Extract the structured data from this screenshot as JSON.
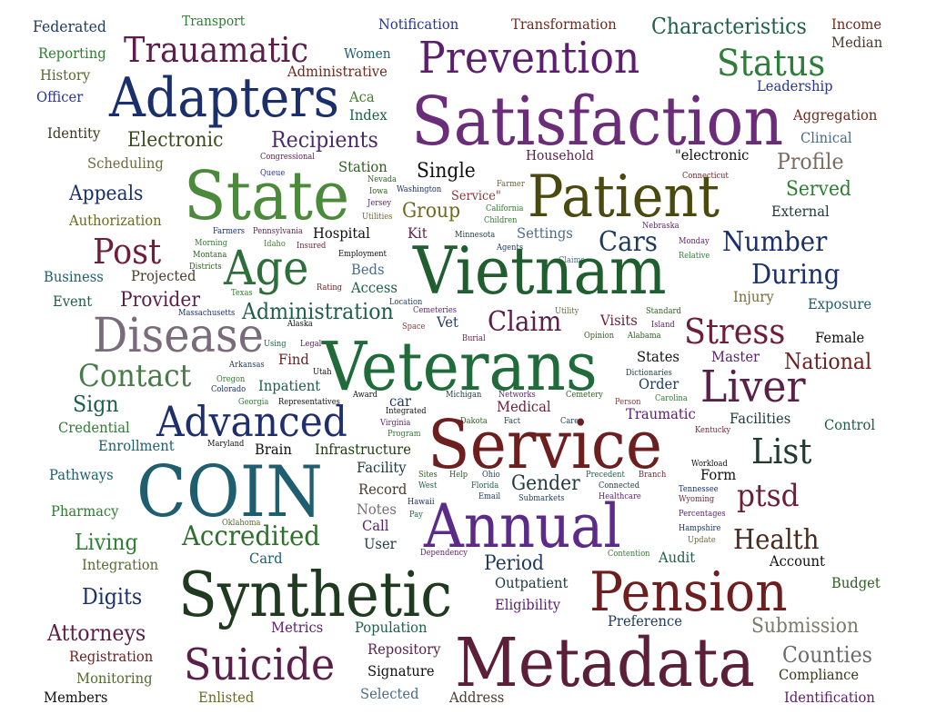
{
  "words": [
    {
      "text": "Federated",
      "color": "#1f3a5f"
    },
    {
      "text": "Transport",
      "color": "#2e7d32"
    },
    {
      "text": "Notification",
      "color": "#283593"
    },
    {
      "text": "Transformation",
      "color": "#6d2b1f"
    },
    {
      "text": "Characteristics",
      "color": "#1f5e4a"
    },
    {
      "text": "Income",
      "color": "#6d2b1f"
    },
    {
      "text": "Median",
      "color": "#4a3b2e"
    },
    {
      "text": "Reporting",
      "color": "#2e7d32"
    },
    {
      "text": "Trauamatic",
      "color": "#5c1f4a"
    },
    {
      "text": "Women",
      "color": "#1f5e6e"
    },
    {
      "text": "Prevention",
      "color": "#5c1f6e"
    },
    {
      "text": "Status",
      "color": "#2e7d3a"
    },
    {
      "text": "History",
      "color": "#556b2f"
    },
    {
      "text": "Administrative",
      "color": "#6d2b1f"
    },
    {
      "text": "Officer",
      "color": "#283593"
    },
    {
      "text": "Adapters",
      "color": "#1a2f6b"
    },
    {
      "text": "Aca",
      "color": "#4a7a2e"
    },
    {
      "text": "Leadership",
      "color": "#283593"
    },
    {
      "text": "Index",
      "color": "#1f5e4a"
    },
    {
      "text": "Satisfaction",
      "color": "#6b2d7a"
    },
    {
      "text": "Aggregation",
      "color": "#6d2b1f"
    },
    {
      "text": "Identity",
      "color": "#3a3a1f"
    },
    {
      "text": "Clinical",
      "color": "#4a6b8a"
    },
    {
      "text": "Electronic",
      "color": "#3a4a1f"
    },
    {
      "text": "Recipients",
      "color": "#4a2b6b"
    },
    {
      "text": "Household",
      "color": "#5c1f4a"
    },
    {
      "text": "\"electronic",
      "color": "#111111"
    },
    {
      "text": "Scheduling",
      "color": "#6b6b3a"
    },
    {
      "text": "Profile",
      "color": "#7a6b5e"
    },
    {
      "text": "Congressional",
      "color": "#5c1f4a"
    },
    {
      "text": "Station",
      "color": "#2e5e1f"
    },
    {
      "text": "Single",
      "color": "#111111"
    },
    {
      "text": "Farmer",
      "color": "#6b5e3a"
    },
    {
      "text": "Connecticut",
      "color": "#6d1f1f"
    },
    {
      "text": "Queue",
      "color": "#283593"
    },
    {
      "text": "State",
      "color": "#4a8a3a"
    },
    {
      "text": "Patient",
      "color": "#4a4a0f"
    },
    {
      "text": "Served",
      "color": "#2e7d32"
    },
    {
      "text": "Nevada",
      "color": "#2e5e1f"
    },
    {
      "text": "Iowa",
      "color": "#2e5e1f"
    },
    {
      "text": "Washington",
      "color": "#1a2f6b"
    },
    {
      "text": "Service\"",
      "color": "#8a3a3a"
    },
    {
      "text": "Appeals",
      "color": "#1a2f6b"
    },
    {
      "text": "Jersey",
      "color": "#5c1f6e"
    },
    {
      "text": "Group",
      "color": "#6b6b1f"
    },
    {
      "text": "California",
      "color": "#2e7d32"
    },
    {
      "text": "External",
      "color": "#1f3a3a"
    },
    {
      "text": "Authorization",
      "color": "#6b6b1f"
    },
    {
      "text": "Utilities",
      "color": "#6b6b3a"
    },
    {
      "text": "Children",
      "color": "#2e7d32"
    },
    {
      "text": "Nebraska",
      "color": "#5c1f6e"
    },
    {
      "text": "Farmers",
      "color": "#1a2f6b"
    },
    {
      "text": "Pennsylvania",
      "color": "#5c1f4a"
    },
    {
      "text": "Hospital",
      "color": "#111111"
    },
    {
      "text": "Kit",
      "color": "#5c1f4a"
    },
    {
      "text": "Settings",
      "color": "#4a6b8a"
    },
    {
      "text": "Cars",
      "color": "#1f3a5f"
    },
    {
      "text": "Number",
      "color": "#1a2f6b"
    },
    {
      "text": "Post",
      "color": "#6d1f3a"
    },
    {
      "text": "Morning",
      "color": "#2e7d32"
    },
    {
      "text": "Idaho",
      "color": "#4a7a2e"
    },
    {
      "text": "Minnesota",
      "color": "#1f3a3a"
    },
    {
      "text": "Monday",
      "color": "#5c1f6e"
    },
    {
      "text": "Insured",
      "color": "#6d1f3a"
    },
    {
      "text": "Agents",
      "color": "#1f3a5f"
    },
    {
      "text": "Montana",
      "color": "#2e5e1f"
    },
    {
      "text": "Employment",
      "color": "#111111"
    },
    {
      "text": "Relative",
      "color": "#2e7d32"
    },
    {
      "text": "Districts",
      "color": "#2e5e1f"
    },
    {
      "text": "Claims",
      "color": "#4a6b8a"
    },
    {
      "text": "Age",
      "color": "#2e6e3a"
    },
    {
      "text": "Vietnam",
      "color": "#1f5e2e"
    },
    {
      "text": "During",
      "color": "#1a2f6b"
    },
    {
      "text": "Business",
      "color": "#1f5e6e"
    },
    {
      "text": "Projected",
      "color": "#4a3b2e"
    },
    {
      "text": "Beds",
      "color": "#4a6b8a"
    },
    {
      "text": "Rating",
      "color": "#6d1f1f"
    },
    {
      "text": "Access",
      "color": "#1f5e4a"
    },
    {
      "text": "Event",
      "color": "#1f5e4a"
    },
    {
      "text": "Provider",
      "color": "#5c1f4a"
    },
    {
      "text": "Texas",
      "color": "#2e7d32"
    },
    {
      "text": "Location",
      "color": "#1f3a5f"
    },
    {
      "text": "Injury",
      "color": "#7a6b3a"
    },
    {
      "text": "Exposure",
      "color": "#1f5e6e"
    },
    {
      "text": "Massachusetts",
      "color": "#1a2f6b"
    },
    {
      "text": "Administration",
      "color": "#1f5e4a"
    },
    {
      "text": "Cemeteries",
      "color": "#5c1f6e"
    },
    {
      "text": "Utility",
      "color": "#6b6b3a"
    },
    {
      "text": "Standard",
      "color": "#2e5e1f"
    },
    {
      "text": "Claim",
      "color": "#5c1f4a"
    },
    {
      "text": "Visits",
      "color": "#6d1f3a"
    },
    {
      "text": "Island",
      "color": "#5c1f6e"
    },
    {
      "text": "Stress",
      "color": "#6d1f3a"
    },
    {
      "text": "Disease",
      "color": "#7a6b7a"
    },
    {
      "text": "Alaska",
      "color": "#111111"
    },
    {
      "text": "Space",
      "color": "#8a3a3a"
    },
    {
      "text": "Vet",
      "color": "#1f3a5f"
    },
    {
      "text": "Opinion",
      "color": "#2e5e1f"
    },
    {
      "text": "Alabama",
      "color": "#2e5e1f"
    },
    {
      "text": "Female",
      "color": "#111111"
    },
    {
      "text": "Using",
      "color": "#1f5e4a"
    },
    {
      "text": "Legal",
      "color": "#5c1f4a"
    },
    {
      "text": "Burial",
      "color": "#5c1f4a"
    },
    {
      "text": "Veterans",
      "color": "#1f6b3a"
    },
    {
      "text": "States",
      "color": "#111111"
    },
    {
      "text": "Master",
      "color": "#5c1f6e"
    },
    {
      "text": "National",
      "color": "#6d1f1f"
    },
    {
      "text": "Find",
      "color": "#6d1f1f"
    },
    {
      "text": "Contact",
      "color": "#4a7a4a"
    },
    {
      "text": "Arkansas",
      "color": "#1f3a5f"
    },
    {
      "text": "Utah",
      "color": "#111111"
    },
    {
      "text": "Dictionaries",
      "color": "#1f3a3a"
    },
    {
      "text": "Inpatient",
      "color": "#1f5e4a"
    },
    {
      "text": "Order",
      "color": "#1f3a5f"
    },
    {
      "text": "Liver",
      "color": "#5c1f4a"
    },
    {
      "text": "Oregon",
      "color": "#2e7d32"
    },
    {
      "text": "Colorado",
      "color": "#1a2f6b"
    },
    {
      "text": "Award",
      "color": "#111111"
    },
    {
      "text": "Michigan",
      "color": "#1f3a3a"
    },
    {
      "text": "Networks",
      "color": "#5c1f6e"
    },
    {
      "text": "Cemetery",
      "color": "#2e5e1f"
    },
    {
      "text": "Sign",
      "color": "#1f5e4a"
    },
    {
      "text": "Georgia",
      "color": "#2e7d32"
    },
    {
      "text": "Representatives",
      "color": "#111111"
    },
    {
      "text": "car",
      "color": "#1f3a5f"
    },
    {
      "text": "Medical",
      "color": "#6d1f3a"
    },
    {
      "text": "Person",
      "color": "#8a3a3a"
    },
    {
      "text": "Carolina",
      "color": "#2e7d32"
    },
    {
      "text": "Integrated",
      "color": "#111111"
    },
    {
      "text": "Traumatic",
      "color": "#5c1f6e"
    },
    {
      "text": "Credential",
      "color": "#2e7d32"
    },
    {
      "text": "Advanced",
      "color": "#1f2f6e"
    },
    {
      "text": "Virginia",
      "color": "#5c1f6e"
    },
    {
      "text": "Dakota",
      "color": "#2e5e1f"
    },
    {
      "text": "Fact",
      "color": "#1f3a3a"
    },
    {
      "text": "Care",
      "color": "#1f3a5f"
    },
    {
      "text": "Kentucky",
      "color": "#6d1f3a"
    },
    {
      "text": "Facilities",
      "color": "#1f3a3a"
    },
    {
      "text": "Control",
      "color": "#1f5e4a"
    },
    {
      "text": "Program",
      "color": "#2e7d32"
    },
    {
      "text": "Enrollment",
      "color": "#1f5e6e"
    },
    {
      "text": "Maryland",
      "color": "#111111"
    },
    {
      "text": "Brain",
      "color": "#111111"
    },
    {
      "text": "Infrastructure",
      "color": "#1f3a0f"
    },
    {
      "text": "Service",
      "color": "#6d1f1f"
    },
    {
      "text": "List",
      "color": "#1f3a2e"
    },
    {
      "text": "Workload",
      "color": "#111111"
    },
    {
      "text": "Pathways",
      "color": "#1f5e6e"
    },
    {
      "text": "COIN",
      "color": "#1f5e6e"
    },
    {
      "text": "Facility",
      "color": "#1f3a3a"
    },
    {
      "text": "Sites",
      "color": "#2e5e1f"
    },
    {
      "text": "Help",
      "color": "#2e5e1f"
    },
    {
      "text": "Ohio",
      "color": "#1f3a5f"
    },
    {
      "text": "Precedent",
      "color": "#1f5e4a"
    },
    {
      "text": "Branch",
      "color": "#6d1f3a"
    },
    {
      "text": "Form",
      "color": "#111111"
    },
    {
      "text": "Tennessee",
      "color": "#1a2f6b"
    },
    {
      "text": "Gender",
      "color": "#1f3a3a"
    },
    {
      "text": "West",
      "color": "#1f5e4a"
    },
    {
      "text": "Florida",
      "color": "#1f5e4a"
    },
    {
      "text": "Connected",
      "color": "#1f3a3a"
    },
    {
      "text": "Record",
      "color": "#4a3b2e"
    },
    {
      "text": "Email",
      "color": "#1f3a5f"
    },
    {
      "text": "Submarkets",
      "color": "#1f3a5f"
    },
    {
      "text": "Healthcare",
      "color": "#5c1f6e"
    },
    {
      "text": "Wyoming",
      "color": "#6d1f3a"
    },
    {
      "text": "ptsd",
      "color": "#6d1f3a"
    },
    {
      "text": "Pharmacy",
      "color": "#2e7d32"
    },
    {
      "text": "Notes",
      "color": "#7a6b7a"
    },
    {
      "text": "Hawaii",
      "color": "#1a2f6b"
    },
    {
      "text": "Pay",
      "color": "#1f5e4a"
    },
    {
      "text": "Percentages",
      "color": "#5c1f6e"
    },
    {
      "text": "Oklahoma",
      "color": "#556b2f"
    },
    {
      "text": "Call",
      "color": "#5c1f6e"
    },
    {
      "text": "Annual",
      "color": "#5c2b8a"
    },
    {
      "text": "Hampshire",
      "color": "#1a2f6b"
    },
    {
      "text": "Update",
      "color": "#6b6b3a"
    },
    {
      "text": "Living",
      "color": "#2e7d32"
    },
    {
      "text": "Accredited",
      "color": "#2e6e2e"
    },
    {
      "text": "Health",
      "color": "#4a2b1f"
    },
    {
      "text": "User",
      "color": "#1f3a3a"
    },
    {
      "text": "Card",
      "color": "#1f5e6e"
    },
    {
      "text": "Dependency",
      "color": "#5c1f6e"
    },
    {
      "text": "Contention",
      "color": "#2e7d32"
    },
    {
      "text": "Audit",
      "color": "#1f5e4a"
    },
    {
      "text": "Account",
      "color": "#111111"
    },
    {
      "text": "Integration",
      "color": "#556b2f"
    },
    {
      "text": "Period",
      "color": "#1f3a5f"
    },
    {
      "text": "Digits",
      "color": "#1a2f6b"
    },
    {
      "text": "Synthetic",
      "color": "#1f3a1f"
    },
    {
      "text": "Outpatient",
      "color": "#1f3a3a"
    },
    {
      "text": "Pension",
      "color": "#6d1f1f"
    },
    {
      "text": "Budget",
      "color": "#2e5e1f"
    },
    {
      "text": "Eligibility",
      "color": "#5c1f6e"
    },
    {
      "text": "Preference",
      "color": "#1f3a5f"
    },
    {
      "text": "Attorneys",
      "color": "#5c1f4a"
    },
    {
      "text": "Metrics",
      "color": "#5c1f6e"
    },
    {
      "text": "Population",
      "color": "#1f5e4a"
    },
    {
      "text": "Submission",
      "color": "#7a7a6b"
    },
    {
      "text": "Registration",
      "color": "#6d1f1f"
    },
    {
      "text": "Suicide",
      "color": "#5c1f4a"
    },
    {
      "text": "Repository",
      "color": "#5c1f4a"
    },
    {
      "text": "Metadata",
      "color": "#5c1f3a"
    },
    {
      "text": "Counties",
      "color": "#6b6b6b"
    },
    {
      "text": "Monitoring",
      "color": "#556b2f"
    },
    {
      "text": "Signature",
      "color": "#111111"
    },
    {
      "text": "Compliance",
      "color": "#3a3a1f"
    },
    {
      "text": "Members",
      "color": "#111111"
    },
    {
      "text": "Enlisted",
      "color": "#6b6b1f"
    },
    {
      "text": "Selected",
      "color": "#4a6b8a"
    },
    {
      "text": "Address",
      "color": "#4a3b2e"
    },
    {
      "text": "Identification",
      "color": "#5c1f6e"
    }
  ]
}
